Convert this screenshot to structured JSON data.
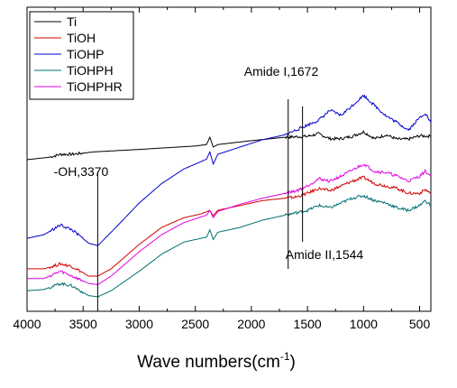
{
  "chart_data": {
    "type": "line",
    "xlabel": "Wave numbers(cm",
    "xlabel_sup": "-1",
    "xlabel_close": ")",
    "ylabel": "",
    "title": "",
    "xlim": [
      4000,
      400
    ],
    "x_reversed": true,
    "ylim": [
      0,
      1
    ],
    "y_ticks_shown": false,
    "grid": false,
    "legend_position": "top-left",
    "x_ticks": [
      4000,
      3500,
      3000,
      2500,
      2000,
      1500,
      1000,
      500
    ],
    "x_tick_labels": [
      "4000",
      "3500",
      "3000",
      "2500",
      "2000",
      "1500",
      "1000",
      "500"
    ],
    "series": [
      {
        "name": "Ti",
        "color": "#000000",
        "x": [
          4000,
          3800,
          3700,
          3600,
          3400,
          3000,
          2500,
          2400,
          2370,
          2340,
          2300,
          2000,
          1700,
          1600,
          1500,
          1400,
          1300,
          1200,
          1100,
          1000,
          900,
          800,
          700,
          600,
          500,
          400
        ],
        "y": [
          0.578,
          0.588,
          0.6,
          0.6,
          0.61,
          0.62,
          0.634,
          0.64,
          0.67,
          0.63,
          0.64,
          0.656,
          0.67,
          0.672,
          0.674,
          0.684,
          0.664,
          0.664,
          0.674,
          0.692,
          0.664,
          0.68,
          0.662,
          0.662,
          0.676,
          0.674
        ]
      },
      {
        "name": "TiOH",
        "color": "#d40000",
        "x": [
          4000,
          3850,
          3700,
          3600,
          3450,
          3370,
          3250,
          3000,
          2800,
          2600,
          2450,
          2370,
          2340,
          2300,
          2100,
          1900,
          1700,
          1600,
          1500,
          1400,
          1300,
          1200,
          1100,
          1000,
          900,
          800,
          700,
          600,
          500,
          450,
          400
        ],
        "y": [
          0.13,
          0.13,
          0.15,
          0.14,
          0.1,
          0.1,
          0.13,
          0.23,
          0.3,
          0.34,
          0.355,
          0.37,
          0.348,
          0.37,
          0.39,
          0.41,
          0.42,
          0.425,
          0.44,
          0.46,
          0.45,
          0.47,
          0.49,
          0.505,
          0.48,
          0.47,
          0.46,
          0.44,
          0.44,
          0.455,
          0.44
        ]
      },
      {
        "name": "TiOHP",
        "color": "#0000cc",
        "x": [
          4000,
          3850,
          3700,
          3600,
          3450,
          3370,
          3250,
          3000,
          2800,
          2600,
          2400,
          2370,
          2340,
          2300,
          2100,
          1900,
          1700,
          1600,
          1500,
          1400,
          1300,
          1200,
          1100,
          1000,
          900,
          800,
          700,
          600,
          500,
          450,
          400
        ],
        "y": [
          0.255,
          0.27,
          0.31,
          0.29,
          0.235,
          0.225,
          0.28,
          0.4,
          0.48,
          0.54,
          0.58,
          0.61,
          0.56,
          0.6,
          0.63,
          0.66,
          0.68,
          0.7,
          0.72,
          0.74,
          0.78,
          0.76,
          0.8,
          0.842,
          0.8,
          0.758,
          0.73,
          0.7,
          0.75,
          0.77,
          0.73
        ]
      },
      {
        "name": "TiOHPH",
        "color": "#007070",
        "x": [
          4000,
          3850,
          3700,
          3600,
          3450,
          3370,
          3250,
          3000,
          2800,
          2600,
          2400,
          2370,
          2340,
          2300,
          2100,
          1900,
          1700,
          1600,
          1500,
          1400,
          1300,
          1200,
          1100,
          1000,
          900,
          800,
          700,
          600,
          500,
          450,
          400
        ],
        "y": [
          0.04,
          0.045,
          0.07,
          0.06,
          0.02,
          0.015,
          0.04,
          0.12,
          0.19,
          0.24,
          0.26,
          0.29,
          0.25,
          0.28,
          0.3,
          0.33,
          0.35,
          0.36,
          0.37,
          0.39,
          0.38,
          0.4,
          0.42,
          0.43,
          0.41,
          0.4,
          0.38,
          0.37,
          0.39,
          0.41,
          0.39
        ]
      },
      {
        "name": "TiOHPHR",
        "color": "#e000e0",
        "x": [
          4000,
          3850,
          3700,
          3600,
          3450,
          3370,
          3250,
          3000,
          2800,
          2600,
          2400,
          2370,
          2340,
          2300,
          2100,
          1900,
          1700,
          1600,
          1500,
          1400,
          1300,
          1200,
          1100,
          1000,
          900,
          800,
          700,
          600,
          500,
          450,
          400
        ],
        "y": [
          0.09,
          0.09,
          0.12,
          0.1,
          0.07,
          0.065,
          0.1,
          0.2,
          0.27,
          0.32,
          0.35,
          0.37,
          0.34,
          0.365,
          0.395,
          0.42,
          0.44,
          0.45,
          0.47,
          0.5,
          0.49,
          0.51,
          0.535,
          0.56,
          0.53,
          0.525,
          0.51,
          0.49,
          0.51,
          0.53,
          0.51
        ]
      }
    ],
    "annotations": [
      {
        "text": "Amide I,1672",
        "x": 1672
      },
      {
        "text": "Amide II,1544",
        "x": 1544
      },
      {
        "text": "-OH,3370",
        "x": 3370
      }
    ]
  }
}
